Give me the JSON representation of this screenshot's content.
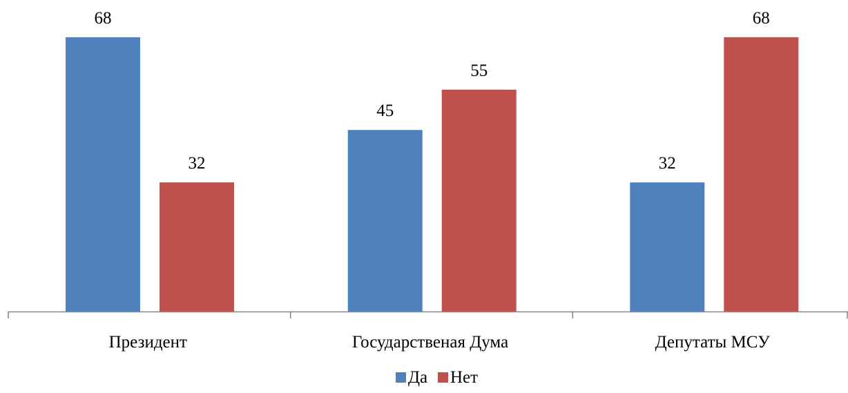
{
  "chart_data": {
    "type": "bar",
    "title": "",
    "xlabel": "",
    "ylabel": "",
    "categories": [
      "Президент",
      "Государственая Дума",
      "Депутаты МСУ"
    ],
    "series": [
      {
        "name": "Да",
        "color": "#4f81bd",
        "values": [
          68,
          45,
          32
        ]
      },
      {
        "name": "Нет",
        "color": "#c0504d",
        "values": [
          32,
          55,
          68
        ]
      }
    ],
    "ylim": [
      0,
      80
    ],
    "grid": false,
    "y_axis_visible": false,
    "data_labels": true,
    "legend_position": "bottom"
  }
}
